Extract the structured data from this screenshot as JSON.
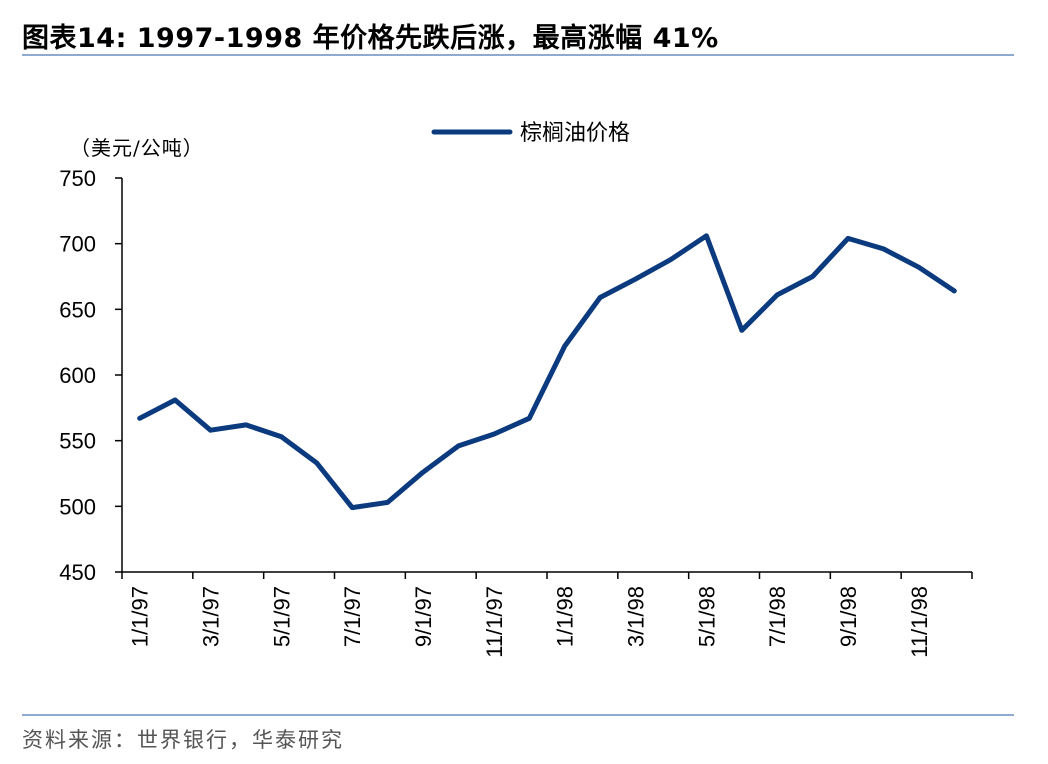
{
  "header": {
    "title": "图表14:   1997-1998 年价格先跌后涨，最高涨幅 41%"
  },
  "footer": {
    "source": "资料来源：世界银行，华泰研究"
  },
  "colors": {
    "series": "#0b3a7e",
    "rule": "#8eaad1"
  },
  "chart_data": {
    "type": "line",
    "title": "",
    "xlabel": "",
    "ylabel": "（美元/公吨）",
    "ylim": [
      450,
      750
    ],
    "yticks": [
      450,
      500,
      550,
      600,
      650,
      700,
      750
    ],
    "grid": false,
    "legend_position": "top-center",
    "x_tick_labels": [
      "1/1/97",
      "3/1/97",
      "5/1/97",
      "7/1/97",
      "9/1/97",
      "11/1/97",
      "1/1/98",
      "3/1/98",
      "5/1/98",
      "7/1/98",
      "9/1/98",
      "11/1/98"
    ],
    "x": [
      "1/1/97",
      "2/1/97",
      "3/1/97",
      "4/1/97",
      "5/1/97",
      "6/1/97",
      "7/1/97",
      "8/1/97",
      "9/1/97",
      "10/1/97",
      "11/1/97",
      "12/1/97",
      "1/1/98",
      "2/1/98",
      "3/1/98",
      "4/1/98",
      "5/1/98",
      "6/1/98",
      "7/1/98",
      "8/1/98",
      "9/1/98",
      "10/1/98",
      "11/1/98",
      "12/1/98"
    ],
    "series": [
      {
        "name": "棕榈油价格",
        "values": [
          567,
          581,
          558,
          562,
          553,
          533,
          499,
          503,
          526,
          546,
          555,
          567,
          622,
          659,
          673,
          688,
          706,
          634,
          661,
          675,
          704,
          696,
          682,
          664
        ]
      }
    ]
  }
}
